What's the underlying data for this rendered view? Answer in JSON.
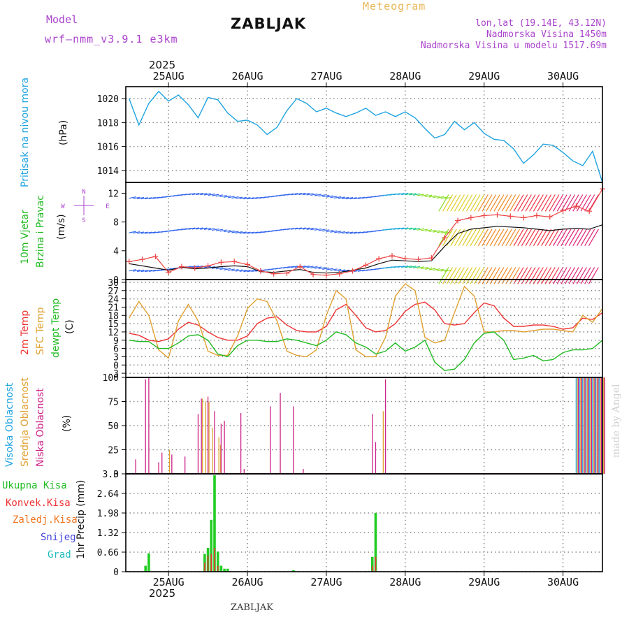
{
  "header": {
    "model_label": "Model",
    "model_name": "wrf–nmm_v3.9.1  e3km",
    "station": "ZABLJAK",
    "meteogram": "Meteogram",
    "coords": "lon,lat (19.14E, 43.12N)",
    "altitude": "Nadmorska Visina 1450m",
    "model_altitude": "Nadmorska Visina u modelu 1517.69m",
    "year_top": "2025",
    "year_bottom": "2025",
    "footer_station": "ZABLJAK",
    "watermark": "made by Angel"
  },
  "colors": {
    "pressure": "#1fa3e0",
    "wind_label": "#22bb22",
    "temp": "#ee3333",
    "sfc": "#e0a030",
    "dewpt": "#22bb22",
    "high_cloud": "#1fa3e0",
    "mid_cloud": "#e0a030",
    "low_cloud": "#cc2288",
    "total_precip": "#22cc22",
    "conv_precip": "#ee3333",
    "frz_precip": "#ee7722",
    "snow": "#4444dd",
    "grad": "#22bbbb",
    "title_purple": "#aa44cc",
    "meteogram_orange": "#e8b85a"
  },
  "chart_data": [
    {
      "type": "line",
      "title": "Pritisak na nivou mora",
      "ylabel": "(hPa)",
      "ylim": [
        1013,
        1021
      ],
      "yticks": [
        "1020",
        "1018",
        "1016",
        "1014"
      ],
      "x_hours": [
        0,
        3,
        6,
        9,
        12,
        15,
        18,
        21,
        24,
        27,
        30,
        33,
        36,
        39,
        42,
        45,
        48,
        51,
        54,
        57,
        60,
        63,
        66,
        69,
        72,
        75,
        78,
        81,
        84,
        87,
        90,
        93,
        96,
        99,
        102,
        105,
        108,
        111,
        114,
        117,
        120,
        123,
        126,
        129,
        132,
        135,
        138,
        141,
        144
      ],
      "series": [
        {
          "name": "pressure",
          "values": [
            1020.0,
            1017.8,
            1019.6,
            1020.6,
            1019.8,
            1020.3,
            1019.5,
            1018.4,
            1020.1,
            1019.9,
            1018.8,
            1018.1,
            1018.2,
            1017.8,
            1017.0,
            1017.6,
            1019.0,
            1020.0,
            1019.6,
            1018.9,
            1019.2,
            1018.8,
            1018.5,
            1018.8,
            1019.2,
            1018.6,
            1018.9,
            1018.5,
            1018.9,
            1018.4,
            1017.5,
            1016.7,
            1017.0,
            1018.1,
            1017.4,
            1018.0,
            1017.1,
            1016.6,
            1016.5,
            1015.8,
            1014.6,
            1015.3,
            1016.2,
            1016.1,
            1015.5,
            1014.8,
            1014.4,
            1015.6,
            1013.0
          ]
        }
      ]
    },
    {
      "type": "line",
      "title": "10m Vjetar Brzina i Pravac",
      "ylabel": "(m/s)",
      "ylim": [
        0,
        13.5
      ],
      "yticks": [
        "12",
        "8",
        "4",
        "0"
      ],
      "compass": [
        "N",
        "W",
        "E",
        "S"
      ],
      "x_hours": [
        0,
        4,
        8,
        12,
        16,
        20,
        24,
        28,
        32,
        36,
        40,
        44,
        48,
        52,
        56,
        60,
        64,
        68,
        72,
        76,
        80,
        84,
        88,
        92,
        96,
        100,
        104,
        108,
        112,
        116,
        120,
        124,
        128,
        132,
        136,
        140,
        144
      ],
      "series": [
        {
          "name": "wind_speed",
          "values": [
            2.2,
            1.9,
            1.6,
            1.3,
            1.7,
            1.5,
            1.6,
            1.8,
            1.9,
            1.8,
            1.1,
            1.0,
            1.2,
            1.4,
            1.0,
            0.9,
            1.0,
            1.3,
            1.6,
            2.2,
            2.7,
            2.6,
            2.5,
            2.6,
            4.6,
            6.4,
            7.0,
            7.2,
            7.4,
            7.3,
            7.2,
            7.0,
            6.8,
            7.0,
            7.1,
            7.0,
            7.6
          ]
        },
        {
          "name": "wind_gust",
          "values": [
            2.5,
            2.8,
            3.2,
            1.0,
            1.8,
            1.6,
            1.9,
            2.4,
            2.5,
            2.1,
            1.2,
            0.8,
            0.9,
            1.8,
            0.7,
            0.6,
            0.8,
            1.2,
            2.0,
            2.9,
            3.3,
            2.9,
            2.8,
            3.0,
            5.8,
            8.2,
            8.6,
            8.9,
            9.0,
            8.8,
            8.6,
            8.9,
            8.7,
            9.6,
            10.2,
            9.5,
            12.6
          ]
        }
      ]
    },
    {
      "type": "line",
      "title": "2m Temp / SFC Temp / dewpt Temp",
      "ylabel": "(C)",
      "ylim": [
        -4.5,
        31
      ],
      "yticks": [
        "30",
        "27",
        "24",
        "21",
        "18",
        "15",
        "12",
        "9",
        "6",
        "3",
        "0",
        "-3"
      ],
      "x_hours": [
        0,
        3,
        6,
        9,
        12,
        15,
        18,
        21,
        24,
        27,
        30,
        33,
        36,
        39,
        42,
        45,
        48,
        51,
        54,
        57,
        60,
        63,
        66,
        69,
        72,
        75,
        78,
        81,
        84,
        87,
        90,
        93,
        96,
        99,
        102,
        105,
        108,
        111,
        114,
        117,
        120,
        123,
        126,
        129,
        132,
        135,
        138,
        141,
        144
      ],
      "series": [
        {
          "name": "t2m",
          "values": [
            11.5,
            10.8,
            9.0,
            8.5,
            9.5,
            13.0,
            15.5,
            14.5,
            12.0,
            10.0,
            9.0,
            9.0,
            10.5,
            15.0,
            17.0,
            17.5,
            14.5,
            12.5,
            12.0,
            12.0,
            14.0,
            20.0,
            22.0,
            18.0,
            13.5,
            12.0,
            12.5,
            15.0,
            19.5,
            22.0,
            22.8,
            20.0,
            15.0,
            14.5,
            15.0,
            19.0,
            22.5,
            21.5,
            17.0,
            14.0,
            14.0,
            14.5,
            14.5,
            14.0,
            13.0,
            13.5,
            17.0,
            16.5,
            19.0
          ]
        },
        {
          "name": "sfc",
          "values": [
            17.0,
            23.0,
            18.0,
            5.5,
            2.5,
            16.0,
            22.0,
            16.0,
            5.0,
            3.5,
            3.5,
            10.5,
            20.5,
            24.0,
            23.0,
            16.0,
            5.0,
            3.5,
            3.0,
            5.5,
            18.0,
            27.0,
            24.0,
            5.5,
            3.0,
            3.0,
            10.0,
            25.0,
            29.5,
            27.0,
            10.0,
            8.0,
            9.0,
            19.0,
            28.5,
            25.0,
            12.0,
            12.0,
            12.5,
            12.5,
            12.0,
            12.5,
            13.0,
            13.0,
            12.5,
            12.0,
            18.0,
            15.5,
            20.5
          ]
        },
        {
          "name": "dewpt",
          "values": [
            9.0,
            8.5,
            8.5,
            6.0,
            6.0,
            8.0,
            10.5,
            11.0,
            9.0,
            4.0,
            3.0,
            7.0,
            9.0,
            9.0,
            8.5,
            8.5,
            9.5,
            9.0,
            8.0,
            7.0,
            9.0,
            12.0,
            11.0,
            8.0,
            6.5,
            4.0,
            5.0,
            8.0,
            5.0,
            6.5,
            9.0,
            1.0,
            -2.0,
            -1.5,
            2.0,
            8.0,
            11.5,
            12.0,
            9.0,
            2.0,
            2.5,
            3.5,
            1.5,
            2.0,
            4.5,
            5.5,
            5.5,
            6.0,
            9.0
          ]
        }
      ]
    },
    {
      "type": "bar",
      "title": "Visoka / Srednja / Niska Oblacnost",
      "ylabel": "(%)",
      "ylim": [
        0,
        100
      ],
      "yticks": [
        "100",
        "75",
        "50",
        "25",
        "0"
      ],
      "low_cloud_hours": [
        2,
        5,
        6,
        9,
        10,
        13,
        17,
        21,
        22,
        24,
        26,
        28,
        29,
        34,
        35,
        43,
        46,
        50,
        53,
        74,
        75,
        78
      ],
      "low_cloud_values": [
        15,
        98,
        100,
        12,
        22,
        20,
        18,
        62,
        78,
        80,
        65,
        52,
        55,
        63,
        5,
        70,
        84,
        70,
        5,
        62,
        33,
        98
      ],
      "mid_cloud_hours": [
        12,
        22,
        23,
        24,
        25,
        27,
        27.5,
        77
      ],
      "mid_cloud_values": [
        25,
        78,
        75,
        75,
        48,
        38,
        30,
        65
      ],
      "high_cloud_hours": [
        136,
        137,
        138,
        139,
        140,
        141,
        142,
        143,
        144
      ],
      "high_cloud_values": [
        100,
        100,
        100,
        100,
        100,
        100,
        100,
        100,
        100
      ]
    },
    {
      "type": "bar",
      "title": "1hr Precip",
      "ylabel": "1hr Precip (mm)",
      "ylim": [
        0,
        3.3
      ],
      "yticks": [
        "3.3",
        "2.64",
        "1.98",
        "1.32",
        "0.66",
        "0"
      ],
      "legend": [
        "Ukupna  Kisa",
        "Konvek.Kisa",
        "Zaledj.Kisa",
        "Snijeg",
        "Grad"
      ],
      "total_hours": [
        5,
        6,
        23,
        24,
        25,
        26,
        27,
        28,
        29,
        30,
        50,
        74,
        75
      ],
      "total_values": [
        0.2,
        0.62,
        0.6,
        0.8,
        1.75,
        3.25,
        0.68,
        0.2,
        0.1,
        0.1,
        0.05,
        0.5,
        1.98
      ],
      "conv_hours": [
        23,
        24,
        25,
        26,
        27,
        74,
        75
      ],
      "conv_values": [
        0.3,
        0.55,
        0.6,
        0.8,
        0.2,
        0.2,
        0.5
      ]
    }
  ],
  "x_axis": {
    "days": [
      "25AUG",
      "26AUG",
      "27AUG",
      "28AUG",
      "29AUG",
      "30AUG"
    ],
    "start_hour": -13,
    "end_hour": 132
  }
}
